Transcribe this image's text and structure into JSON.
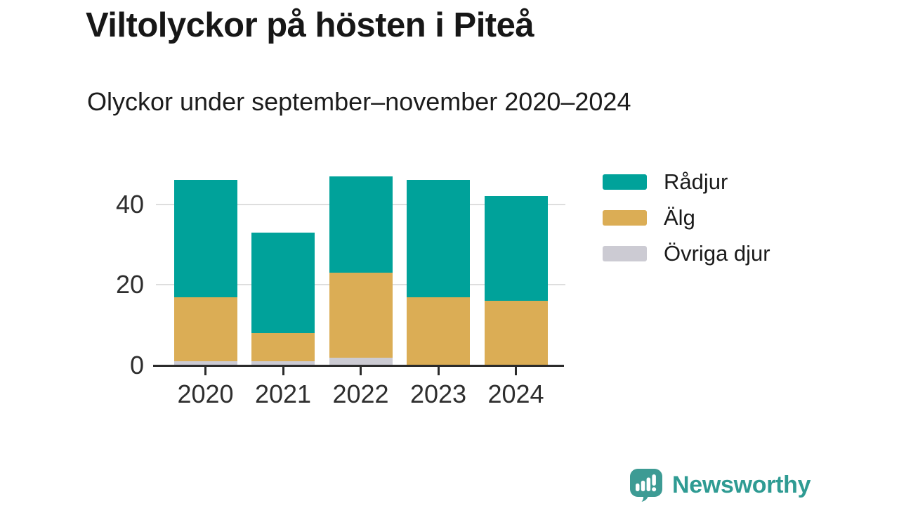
{
  "header": {
    "title": "Viltolyckor på hösten i Piteå",
    "subtitle": "Olyckor under september–november 2020–2024"
  },
  "chart_data": {
    "type": "bar",
    "stacked": true,
    "title": "Viltolyckor på hösten i Piteå",
    "subtitle": "Olyckor under september–november 2020–2024",
    "categories": [
      "2020",
      "2021",
      "2022",
      "2023",
      "2024"
    ],
    "series": [
      {
        "name": "Rådjur",
        "color": "#00a29a",
        "values": [
          29,
          25,
          24,
          29,
          26
        ]
      },
      {
        "name": "Älg",
        "color": "#dbad55",
        "values": [
          16,
          7,
          21,
          17,
          16
        ]
      },
      {
        "name": "Övriga djur",
        "color": "#cccbd3",
        "values": [
          1,
          1,
          2,
          0,
          0
        ]
      }
    ],
    "totals": [
      46,
      33,
      47,
      46,
      42
    ],
    "xlabel": "",
    "ylabel": "",
    "yticks": [
      0,
      20,
      40
    ],
    "ylim": [
      0,
      48
    ],
    "grid": true,
    "legend_position": "right",
    "axis_color": "#2b2b2b",
    "grid_color": "#dedede"
  },
  "footer": {
    "brand": "Newsworthy",
    "brand_color": "#3d9b94"
  }
}
